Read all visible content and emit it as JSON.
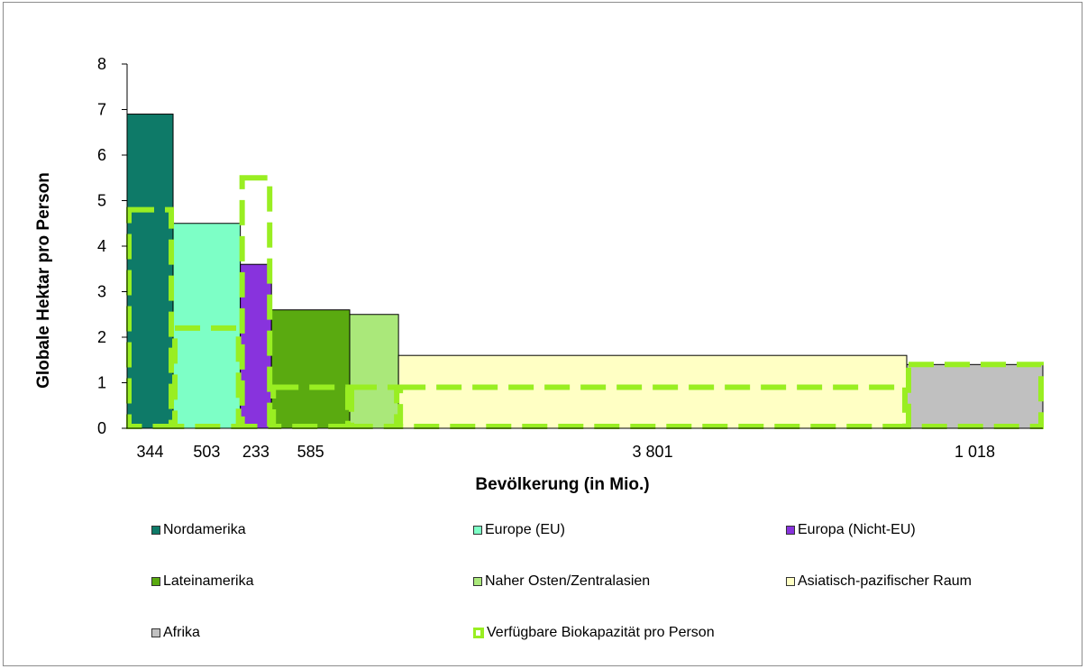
{
  "chart_data": {
    "type": "bar",
    "xlabel": "Bevölkerung (in Mio.)",
    "ylabel": "Globale Hektar pro Person",
    "ylim": [
      0,
      8
    ],
    "yticks": [
      0,
      1,
      2,
      3,
      4,
      5,
      6,
      7,
      8
    ],
    "grid": false,
    "legend_position": "bottom",
    "series": [
      {
        "name": "Nordamerika",
        "population": 344,
        "x_label": "344",
        "footprint": 6.9,
        "biocapacity": 4.8,
        "color": "#0e7a68"
      },
      {
        "name": "Europe (EU)",
        "population": 503,
        "x_label": "503",
        "footprint": 4.5,
        "biocapacity": 2.2,
        "color": "#7dffc6"
      },
      {
        "name": "Europa (Nicht-EU)",
        "population": 233,
        "x_label": "233",
        "footprint": 3.6,
        "biocapacity": 5.5,
        "color": "#8833dd"
      },
      {
        "name": "Lateinamerika",
        "population": 585,
        "x_label": "585",
        "footprint": 2.6,
        "biocapacity": 0.9,
        "color": "#5aaa10"
      },
      {
        "name": "Naher Osten/Zentralasien",
        "population": 365,
        "x_label": "",
        "footprint": 2.5,
        "biocapacity": 0.9,
        "color": "#aae87a"
      },
      {
        "name": "Asiatisch-pazifischer Raum",
        "population": 3801,
        "x_label": "3 801",
        "footprint": 1.6,
        "biocapacity": 0.9,
        "color": "#ffffc4"
      },
      {
        "name": "Afrika",
        "population": 1018,
        "x_label": "1 018",
        "footprint": 1.4,
        "biocapacity": 1.4,
        "color": "#c0c0c0"
      }
    ],
    "biocapacity_series": {
      "name": "Verfügbare Biokapazität pro Person",
      "color": "#99ee22"
    }
  }
}
